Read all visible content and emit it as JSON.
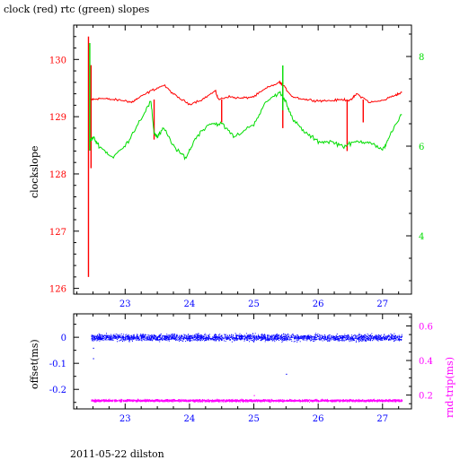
{
  "title": "clock (red) rtc (green) slopes",
  "footer": "2011-05-22 dilston",
  "colors": {
    "clock": "#ff0000",
    "rtc": "#00dd00",
    "offset": "#0000ff",
    "rndtrip": "#ff00ff",
    "frame": "#000000"
  },
  "chart_data": [
    {
      "type": "line",
      "title": "clock (red) rtc (green) slopes",
      "xlabel": "",
      "ylabel": "clockslope",
      "xlim": [
        22.2,
        27.45
      ],
      "x_ticks": [
        "23",
        "24",
        "25",
        "26",
        "27"
      ],
      "ylim_left": [
        125.9,
        130.6
      ],
      "y_ticks_left": [
        "126",
        "127",
        "128",
        "129",
        "130"
      ],
      "ylim_right": [
        2.7,
        8.7
      ],
      "y_ticks_right": [
        "4",
        "6",
        "8"
      ],
      "series": [
        {
          "axis": "left",
          "color": "#ff0000",
          "x": [
            22.45,
            22.5,
            22.6,
            22.8,
            23.0,
            23.1,
            23.2,
            23.4,
            23.6,
            23.8,
            24.0,
            24.2,
            24.4,
            24.45,
            24.6,
            24.8,
            25.0,
            25.2,
            25.4,
            25.45,
            25.6,
            25.8,
            26.0,
            26.2,
            26.4,
            26.5,
            26.6,
            26.8,
            27.0,
            27.2,
            27.3
          ],
          "y": [
            129.3,
            129.3,
            129.32,
            129.3,
            129.28,
            129.25,
            129.32,
            129.45,
            129.55,
            129.35,
            129.22,
            129.3,
            129.45,
            129.3,
            129.35,
            129.32,
            129.35,
            129.5,
            129.6,
            129.55,
            129.35,
            129.3,
            129.28,
            129.28,
            129.3,
            129.28,
            129.4,
            129.25,
            129.28,
            129.38,
            129.42
          ],
          "spikes": [
            {
              "x": 22.43,
              "min": 126.2,
              "max": 130.4
            },
            {
              "x": 22.47,
              "min": 128.1,
              "max": 129.9
            },
            {
              "x": 23.45,
              "min": 128.6,
              "max": 129.3
            },
            {
              "x": 24.5,
              "min": 128.9,
              "max": 129.3
            },
            {
              "x": 25.45,
              "min": 128.8,
              "max": 129.6
            },
            {
              "x": 26.45,
              "min": 128.4,
              "max": 129.3
            },
            {
              "x": 26.7,
              "min": 128.9,
              "max": 129.3
            }
          ]
        },
        {
          "axis": "right",
          "color": "#00dd00",
          "x": [
            22.45,
            22.5,
            22.6,
            22.8,
            23.0,
            23.2,
            23.4,
            23.45,
            23.5,
            23.6,
            23.8,
            23.95,
            24.1,
            24.3,
            24.5,
            24.7,
            25.0,
            25.2,
            25.4,
            25.5,
            25.6,
            25.8,
            26.0,
            26.2,
            26.4,
            26.6,
            26.8,
            27.0,
            27.1,
            27.3
          ],
          "y": [
            6.1,
            6.2,
            6.0,
            5.75,
            6.0,
            6.5,
            7.0,
            6.3,
            6.2,
            6.4,
            5.9,
            5.75,
            6.2,
            6.5,
            6.5,
            6.2,
            6.5,
            7.0,
            7.2,
            7.0,
            6.6,
            6.3,
            6.1,
            6.1,
            6.0,
            6.1,
            6.1,
            5.9,
            6.2,
            6.7
          ],
          "spikes": [
            {
              "x": 22.45,
              "min": 5.9,
              "max": 8.3
            },
            {
              "x": 25.45,
              "min": 6.8,
              "max": 7.8
            }
          ]
        }
      ]
    },
    {
      "type": "scatter",
      "xlabel": "",
      "ylabel": "offset(ms)",
      "ylabel_right": "rnd-trip(ms)",
      "xlim": [
        22.2,
        27.45
      ],
      "x_ticks": [
        "23",
        "24",
        "25",
        "26",
        "27"
      ],
      "ylim_left": [
        -0.275,
        0.09
      ],
      "y_ticks_left": [
        "0",
        "-0.1",
        "-0.2"
      ],
      "ylim_right": [
        0.12,
        0.67
      ],
      "y_ticks_right": [
        "0.2",
        "0.4",
        "0.6"
      ],
      "series": [
        {
          "axis": "left",
          "color": "#0000ff",
          "x_range": [
            22.47,
            27.3
          ],
          "center": 0.0,
          "spread": 0.012,
          "outliers": [
            [
              22.5,
              -0.04
            ],
            [
              22.5,
              -0.08
            ],
            [
              25.5,
              -0.14
            ]
          ]
        },
        {
          "axis": "right",
          "color": "#ff00ff",
          "x_range": [
            22.47,
            27.3
          ],
          "center": 0.17,
          "spread": 0.006,
          "outliers": [
            [
              25.0,
              0.2
            ]
          ]
        }
      ]
    }
  ]
}
